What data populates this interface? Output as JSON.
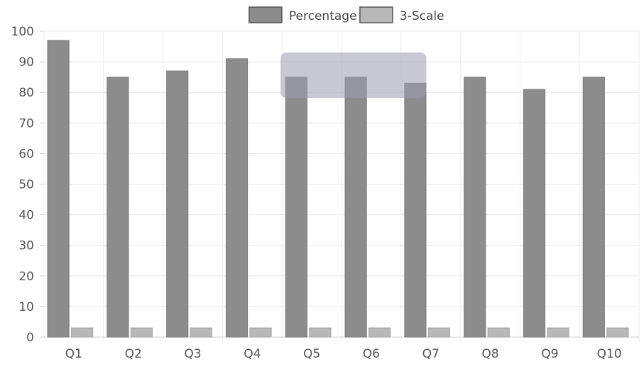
{
  "chart_data": {
    "type": "bar",
    "categories": [
      "Q1",
      "Q2",
      "Q3",
      "Q4",
      "Q5",
      "Q6",
      "Q7",
      "Q8",
      "Q9",
      "Q10"
    ],
    "series": [
      {
        "name": "Percentage",
        "values": [
          97,
          85,
          87,
          91,
          85,
          85,
          83,
          85,
          81,
          85
        ],
        "color": "#8c8c8c"
      },
      {
        "name": "3-Scale",
        "values": [
          3,
          3,
          3,
          3,
          3,
          3,
          3,
          3,
          3,
          3
        ],
        "color": "#b8b8b8"
      }
    ],
    "title": "",
    "xlabel": "",
    "ylabel": "",
    "ylim": [
      0,
      100
    ],
    "yticks": [
      0,
      10,
      20,
      30,
      40,
      50,
      60,
      70,
      80,
      90,
      100
    ],
    "grid": true,
    "legend": "top-center",
    "tooltip": {
      "visible": true,
      "color": "#9c9cb2"
    }
  }
}
